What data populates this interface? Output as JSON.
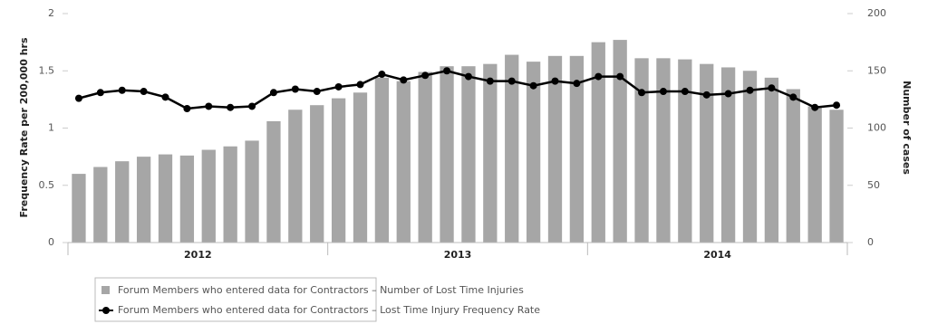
{
  "chart_data": {
    "type": "bar_line",
    "y_label": "Frequency Rate per 200,000 hrs",
    "y2_label": "Number of cases",
    "categories": [
      null,
      null,
      null,
      null,
      null,
      null,
      null,
      null,
      null,
      null,
      null,
      null,
      null,
      null,
      null,
      null,
      null,
      null,
      null,
      null,
      null,
      null,
      null,
      null,
      null,
      null,
      null,
      null,
      null,
      null,
      null,
      null,
      null,
      null,
      null,
      null
    ],
    "x_groups": [
      "2012",
      "2013",
      "2014"
    ],
    "ylim": [
      0,
      2
    ],
    "yticks": [
      0,
      0.5,
      1,
      1.5,
      2
    ],
    "y2lim": [
      0,
      200
    ],
    "y2ticks": [
      0,
      50,
      100,
      150,
      200
    ],
    "series": [
      {
        "name": "Forum Members who entered data for Contractors – Number of Lost Time Injuries",
        "type": "bar",
        "axis": "y2",
        "color": "#a6a6a6",
        "values": [
          60,
          66,
          71,
          75,
          77,
          76,
          81,
          84,
          89,
          106,
          116,
          120,
          126,
          131,
          144,
          141,
          149,
          154,
          154,
          156,
          164,
          158,
          163,
          163,
          175,
          177,
          161,
          161,
          160,
          156,
          153,
          150,
          144,
          134,
          119,
          116
        ]
      },
      {
        "name": "Forum Members who entered data for Contractors – Lost Time Injury Frequency Rate",
        "type": "line",
        "axis": "y",
        "color": "#000000",
        "values": [
          1.26,
          1.31,
          1.33,
          1.32,
          1.27,
          1.17,
          1.19,
          1.18,
          1.19,
          1.31,
          1.34,
          1.32,
          1.36,
          1.38,
          1.47,
          1.42,
          1.46,
          1.5,
          1.45,
          1.41,
          1.41,
          1.37,
          1.41,
          1.39,
          1.45,
          1.45,
          1.31,
          1.32,
          1.32,
          1.29,
          1.3,
          1.33,
          1.35,
          1.27,
          1.18,
          1.2
        ]
      }
    ],
    "grid": false
  }
}
